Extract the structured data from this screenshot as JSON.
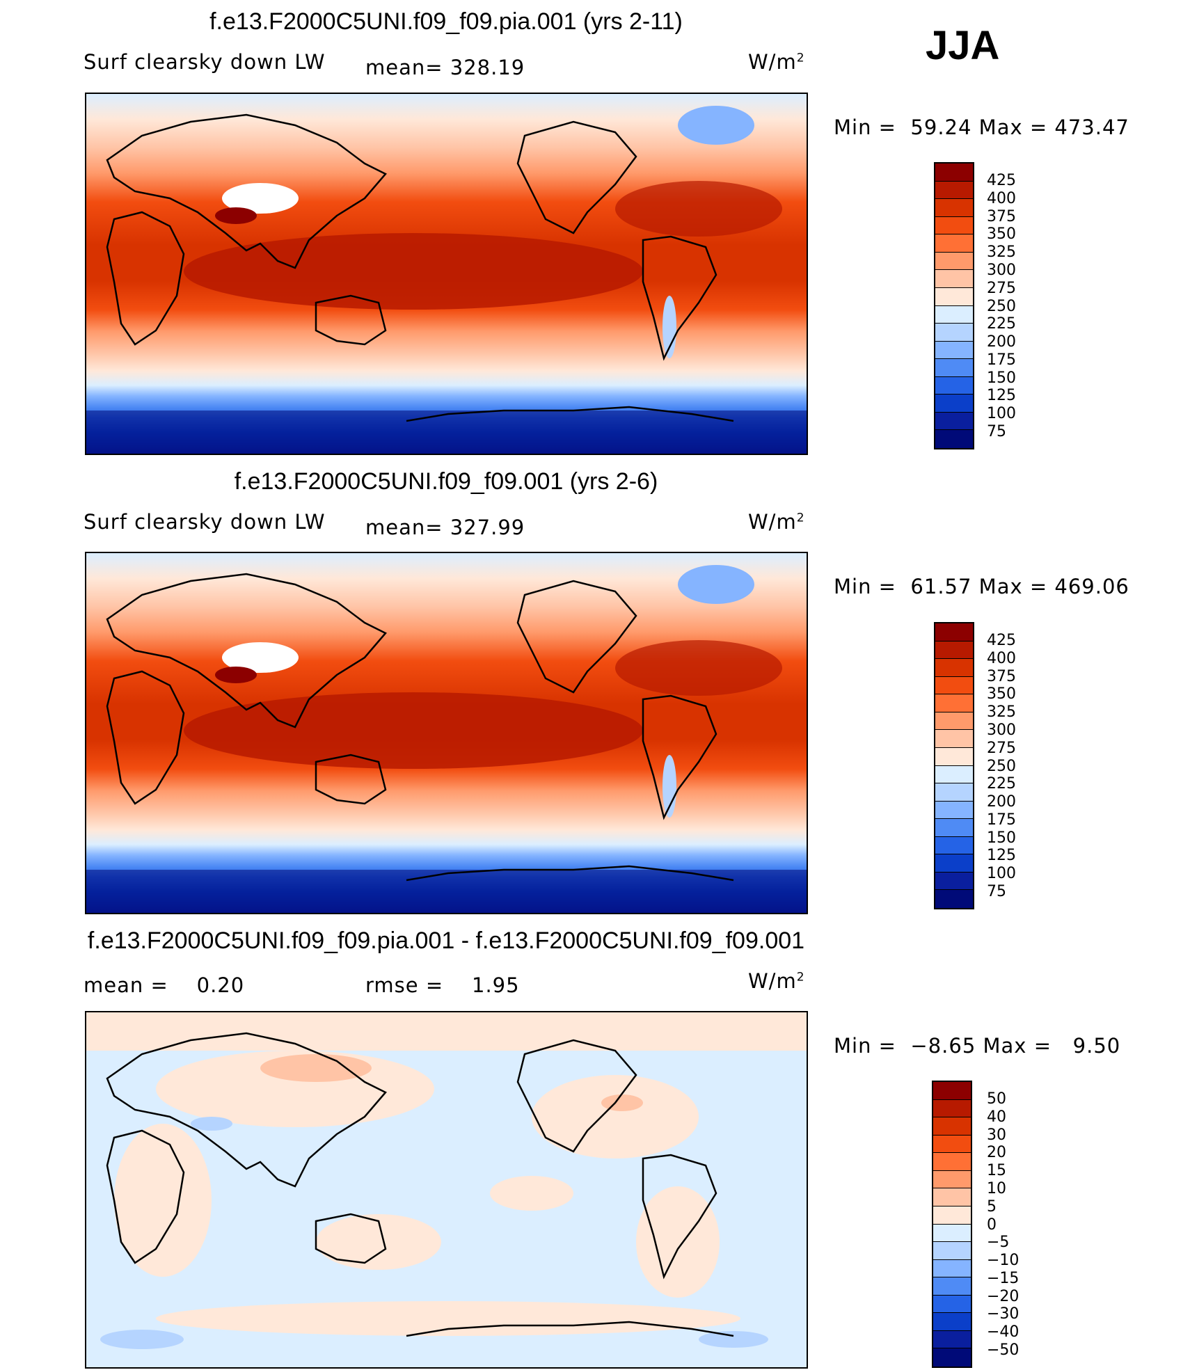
{
  "season": "JJA",
  "panels": [
    {
      "title": "f.e13.F2000C5UNI.f09_f09.pia.001 (yrs 2-11)",
      "variable": "Surf clearsky down LW",
      "stat1_label": "mean=",
      "stat1_value": "328.19",
      "stat2_label": "",
      "stat2_value": "",
      "units_base": "W/m",
      "units_exp": "2",
      "minmax": {
        "min_label": "Min =",
        "min": "59.24",
        "max_label": "Max =",
        "max": "473.47"
      },
      "colorbar": {
        "levels": [
          "425",
          "400",
          "375",
          "350",
          "325",
          "300",
          "275",
          "250",
          "225",
          "200",
          "175",
          "150",
          "125",
          "100",
          "75"
        ],
        "colors": [
          "#8c0000",
          "#b71a00",
          "#d83300",
          "#f24d10",
          "#ff7035",
          "#ff9a6b",
          "#ffc4a6",
          "#ffe8d9",
          "#dbeeff",
          "#b5d4ff",
          "#85b4ff",
          "#4f8bf5",
          "#2563e6",
          "#0b3fc9",
          "#0a1f9e",
          "#000a78"
        ]
      },
      "chart_data": {
        "type": "heatmap",
        "field": "Surf clearsky down LW",
        "units": "W/m2",
        "mean": 328.19,
        "min": 59.24,
        "max": 473.47
      }
    },
    {
      "title": "f.e13.F2000C5UNI.f09_f09.001 (yrs 2-6)",
      "variable": "Surf clearsky down LW",
      "stat1_label": "mean=",
      "stat1_value": "327.99",
      "stat2_label": "",
      "stat2_value": "",
      "units_base": "W/m",
      "units_exp": "2",
      "minmax": {
        "min_label": "Min =",
        "min": "61.57",
        "max_label": "Max =",
        "max": "469.06"
      },
      "colorbar": {
        "levels": [
          "425",
          "400",
          "375",
          "350",
          "325",
          "300",
          "275",
          "250",
          "225",
          "200",
          "175",
          "150",
          "125",
          "100",
          "75"
        ],
        "colors": [
          "#8c0000",
          "#b71a00",
          "#d83300",
          "#f24d10",
          "#ff7035",
          "#ff9a6b",
          "#ffc4a6",
          "#ffe8d9",
          "#dbeeff",
          "#b5d4ff",
          "#85b4ff",
          "#4f8bf5",
          "#2563e6",
          "#0b3fc9",
          "#0a1f9e",
          "#000a78"
        ]
      },
      "chart_data": {
        "type": "heatmap",
        "field": "Surf clearsky down LW",
        "units": "W/m2",
        "mean": 327.99,
        "min": 61.57,
        "max": 469.06
      }
    },
    {
      "title": "f.e13.F2000C5UNI.f09_f09.pia.001 - f.e13.F2000C5UNI.f09_f09.001",
      "variable": "",
      "stat1_label": "mean =",
      "stat1_value": "0.20",
      "stat2_label": "rmse =",
      "stat2_value": "1.95",
      "units_base": "W/m",
      "units_exp": "2",
      "minmax": {
        "min_label": "Min =",
        "min": "−8.65",
        "max_label": "Max =",
        "max": "9.50"
      },
      "colorbar": {
        "levels": [
          "50",
          "40",
          "30",
          "20",
          "15",
          "10",
          "5",
          "0",
          "−5",
          "−10",
          "−15",
          "−20",
          "−30",
          "−40",
          "−50"
        ],
        "colors": [
          "#8c0000",
          "#b71a00",
          "#d83300",
          "#f24d10",
          "#ff7035",
          "#ff9a6b",
          "#ffc4a6",
          "#ffe8d9",
          "#dbeeff",
          "#b5d4ff",
          "#85b4ff",
          "#4f8bf5",
          "#2563e6",
          "#0b3fc9",
          "#0a1f9e",
          "#000a78"
        ]
      },
      "chart_data": {
        "type": "heatmap",
        "field": "difference",
        "units": "W/m2",
        "mean": 0.2,
        "rmse": 1.95,
        "min": -8.65,
        "max": 9.5
      }
    }
  ]
}
